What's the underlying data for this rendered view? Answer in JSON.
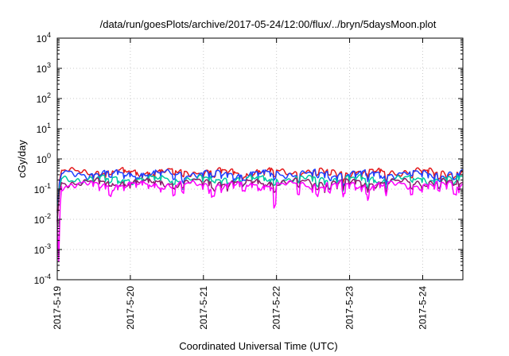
{
  "chart_data": {
    "type": "line",
    "title": "/data/run/goesPlots/archive/2017-05-24/12:00/flux/../bryn/5daysMoon.plot",
    "xlabel": "Coordinated Universal Time (UTC)",
    "ylabel": "cGy/day",
    "yscale": "log",
    "ylim": [
      0.0001,
      10000
    ],
    "xlim": [
      0,
      5.55
    ],
    "grid": true,
    "x_ticks": [
      {
        "value": 0,
        "label": "2017-5-19"
      },
      {
        "value": 1,
        "label": "2017-5-20"
      },
      {
        "value": 2,
        "label": "2017-5-21"
      },
      {
        "value": 3,
        "label": "2017-5-22"
      },
      {
        "value": 4,
        "label": "2017-5-23"
      },
      {
        "value": 5,
        "label": "2017-5-24"
      }
    ],
    "y_ticks": [
      {
        "value": 0.0001,
        "base": "10",
        "exp": "-4"
      },
      {
        "value": 0.001,
        "base": "10",
        "exp": "-3"
      },
      {
        "value": 0.01,
        "base": "10",
        "exp": "-2"
      },
      {
        "value": 0.1,
        "base": "10",
        "exp": "-1"
      },
      {
        "value": 1,
        "base": "10",
        "exp": "0"
      },
      {
        "value": 10,
        "base": "10",
        "exp": "1"
      },
      {
        "value": 100,
        "base": "10",
        "exp": "2"
      },
      {
        "value": 1000,
        "base": "10",
        "exp": "3"
      },
      {
        "value": 10000,
        "base": "10",
        "exp": "4"
      }
    ],
    "series": [
      {
        "color": "#e41a1c",
        "base": 0.38
      },
      {
        "color": "#1f3fff",
        "base": 0.33
      },
      {
        "color": "#00c8a0",
        "base": 0.22
      },
      {
        "color": "#8b1a6b",
        "base": 0.17
      },
      {
        "color": "#ff00ff",
        "base": 0.14
      }
    ],
    "notes": {
      "start_dip_magenta": [
        [
          0.0,
          0.01
        ],
        [
          0.02,
          0.0004
        ],
        [
          0.04,
          0.03
        ],
        [
          0.06,
          0.12
        ]
      ],
      "dips_days": [
        0.72,
        1.6,
        1.72,
        2.13,
        2.55,
        2.98,
        3.3,
        3.55,
        3.72,
        3.92,
        4.24,
        4.5,
        4.85,
        5.22,
        5.44
      ]
    }
  }
}
